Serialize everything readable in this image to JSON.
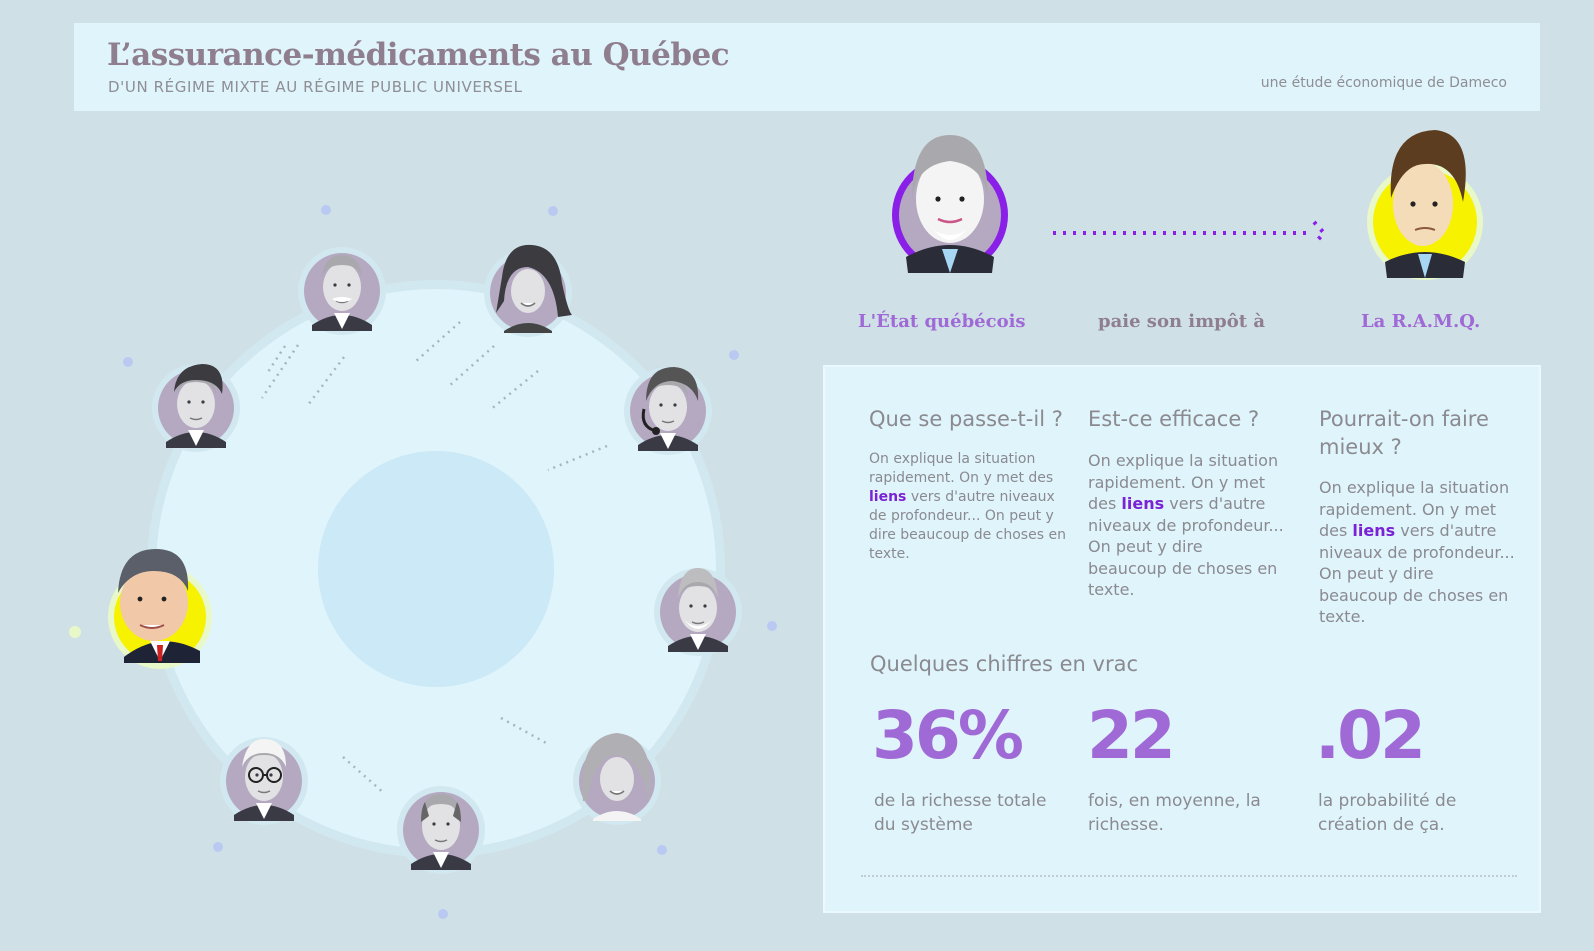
{
  "header": {
    "title": "L’assurance-médicaments au Québec",
    "subtitle": "D'UN RÉGIME MIXTE AU RÉGIME PUBLIC UNIVERSEL",
    "credit": "une étude économique de Dameco"
  },
  "flow": {
    "from_label": "L'État québécois",
    "verb_label": "paie son impôt à",
    "to_label": "La R.A.M.Q."
  },
  "columns": [
    {
      "question": "Que se passe-t-il ?",
      "text_before": "On explique la situation rapidement. On y met des ",
      "link": "liens",
      "text_after": " vers d'autre niveaux de profondeur... On peut y dire beaucoup de choses en texte."
    },
    {
      "question": "Est-ce efficace ?",
      "text_before": "On explique la situation rapidement. On y met des ",
      "link": "liens",
      "text_after": " vers d'autre niveaux de profondeur... On peut y dire beaucoup de choses en texte."
    },
    {
      "question": "Pourrait-on faire mieux ?",
      "text_before": "On explique la situation rapidement. On y met des ",
      "link": "liens",
      "text_after": " vers d'autre niveaux de profondeur... On peut y dire beaucoup de choses en texte."
    }
  ],
  "stats": {
    "heading": "Quelques chiffres en vrac",
    "items": [
      {
        "value": "36%",
        "description": "de la richesse totale du système"
      },
      {
        "value": "22",
        "description": "fois, en moyenne, la richesse."
      },
      {
        "value": ".02",
        "description": "la probabilité de création de ça."
      }
    ]
  },
  "colors": {
    "background": "#cfe0e6",
    "panel": "#e0f4fb",
    "accent_purple": "#a06ad6",
    "link_purple": "#7a22d6",
    "highlight_yellow": "#f7f200",
    "text_gray": "#8a8a90"
  },
  "ring": {
    "portraits": [
      "portrait-man-gray-mustache",
      "portrait-woman-dark-hair",
      "portrait-man-dark-hair",
      "portrait-woman-headset",
      "portrait-man-highlighted",
      "portrait-man-white-beard",
      "portrait-man-glasses",
      "portrait-man-balding",
      "portrait-woman-blonde"
    ]
  }
}
